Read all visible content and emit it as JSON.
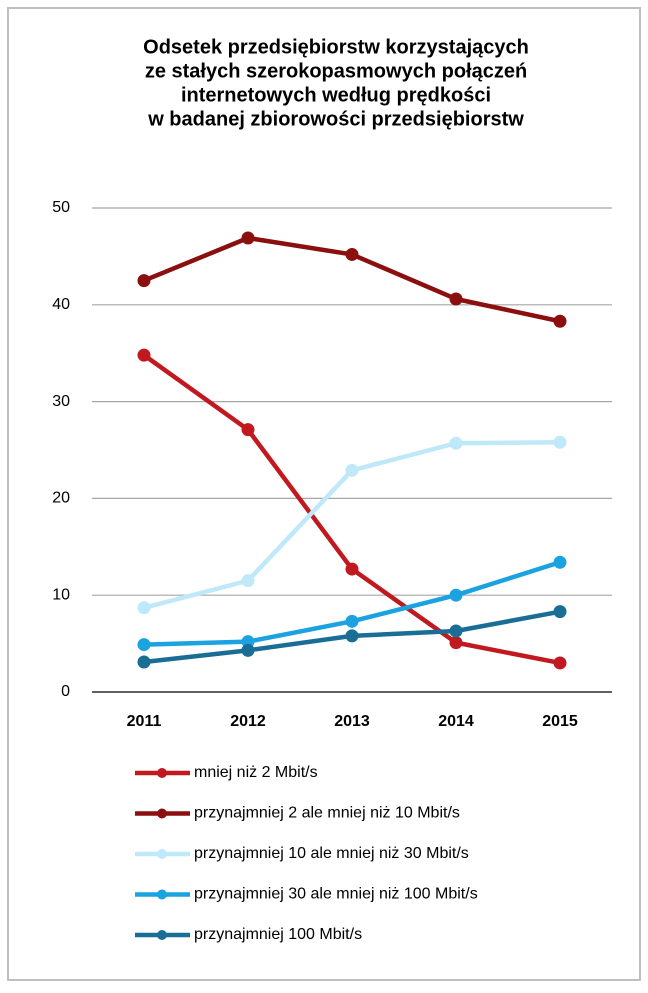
{
  "chart_data": {
    "type": "line",
    "title": [
      "Odsetek przedsiębiorstw korzystających",
      "ze stałych szerokopasmowych połączeń",
      "internetowych według prędkości",
      "w badanej zbiorowości przedsiębiorstw"
    ],
    "categories": [
      "2011",
      "2012",
      "2013",
      "2014",
      "2015"
    ],
    "series": [
      {
        "name": "mniej niż 2 Mbit/s",
        "color": "#c0191f",
        "values": [
          34.8,
          27.1,
          12.7,
          5.1,
          3.0
        ]
      },
      {
        "name": "przynajmniej 2 ale mniej niż 10 Mbit/s",
        "color": "#8b0f0f",
        "values": [
          42.5,
          46.9,
          45.2,
          40.6,
          38.3
        ]
      },
      {
        "name": "przynajmniej 10 ale mniej niż 30 Mbit/s",
        "color": "#bfe9f8",
        "values": [
          8.7,
          11.5,
          22.9,
          25.7,
          25.8
        ]
      },
      {
        "name": "przynajmniej 30 ale mniej niż 100 Mbit/s",
        "color": "#1aa3e0",
        "values": [
          4.9,
          5.2,
          7.3,
          10.0,
          13.4
        ]
      },
      {
        "name": "przynajmniej 100 Mbit/s",
        "color": "#1a6e96",
        "values": [
          3.1,
          4.3,
          5.8,
          6.3,
          8.3
        ]
      }
    ],
    "ylim": [
      0,
      50
    ],
    "yticks": [
      0,
      10,
      20,
      30,
      40,
      50
    ],
    "grid": true,
    "legend": "bottom"
  }
}
